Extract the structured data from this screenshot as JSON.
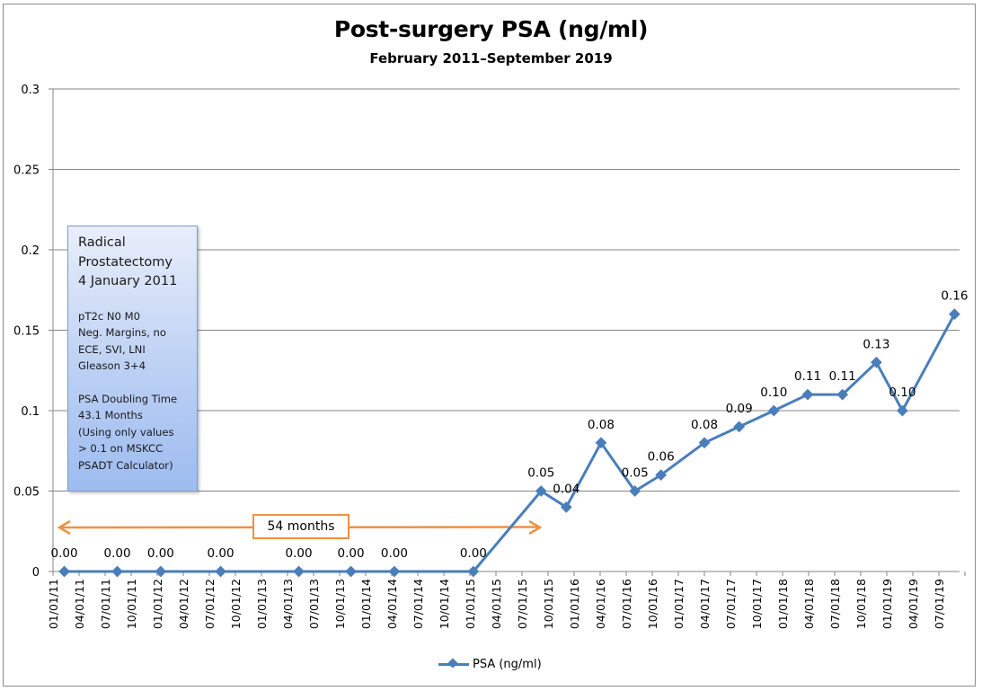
{
  "chart_data": {
    "type": "line",
    "title": "Post-surgery PSA (ng/ml)",
    "subtitle": "February 2011–September 2019",
    "xlabel": "",
    "ylabel": "",
    "ylim": [
      0,
      0.3
    ],
    "y_ticks": [
      0,
      0.05,
      0.1,
      0.15,
      0.2,
      0.25,
      0.3
    ],
    "y_tick_labels": [
      "0",
      "0.05",
      "0.1",
      "0.15",
      "0.2",
      "0.25",
      "0.3"
    ],
    "x_axis_type": "date",
    "x_range_months_since_2011_01_01": [
      0,
      105
    ],
    "x_tick_labels": [
      "01/01/11",
      "04/01/11",
      "07/01/11",
      "10/01/11",
      "01/01/12",
      "04/01/12",
      "07/01/12",
      "10/01/12",
      "01/01/13",
      "04/01/13",
      "07/01/13",
      "10/01/13",
      "01/01/14",
      "04/01/14",
      "07/01/14",
      "10/01/14",
      "01/01/15",
      "04/01/15",
      "07/01/15",
      "10/01/15",
      "01/01/16",
      "04/01/16",
      "07/01/16",
      "10/01/16",
      "01/01/17",
      "04/01/17",
      "07/01/17",
      "10/01/17",
      "01/01/18",
      "04/01/18",
      "07/01/18",
      "10/01/18",
      "01/01/19",
      "04/01/19",
      "07/01/19"
    ],
    "grid": "horizontal",
    "legend_position": "bottom",
    "series": [
      {
        "name": "PSA (ng/ml)",
        "color": "#4a7ebb",
        "marker": "diamond",
        "x_months": [
          1.3,
          7.4,
          12.4,
          19.3,
          28.3,
          34.3,
          39.3,
          48.4,
          56.2,
          59.1,
          63.1,
          67.0,
          70.0,
          75.0,
          79.0,
          83.0,
          86.9,
          90.9,
          94.8,
          97.8,
          103.8
        ],
        "x_dates_approx": [
          "Feb 2011",
          "Aug 2011",
          "Jan 2012",
          "Aug 2012",
          "May 2013",
          "Nov 2013",
          "Apr 2014",
          "Jan 2015",
          "Sep 2015",
          "Dec 2015",
          "Apr 2016",
          "Aug 2016",
          "Nov 2016",
          "Apr 2017",
          "Aug 2017",
          "Dec 2017",
          "Mar 2018",
          "Jul 2018",
          "Nov 2018",
          "Feb 2019",
          "Sep 2019"
        ],
        "values": [
          0,
          0,
          0,
          0,
          0,
          0,
          0,
          0,
          0.05,
          0.04,
          0.08,
          0.05,
          0.06,
          0.08,
          0.09,
          0.1,
          0.11,
          0.11,
          0.13,
          0.1,
          0.16
        ],
        "labels": [
          "0.00",
          "0.00",
          "0.00",
          "0.00",
          "0.00",
          "0.00",
          "0.00",
          "0.00",
          "0.05",
          "0.04",
          "0.08",
          "0.05",
          "0.06",
          "0.08",
          "0.09",
          "0.10",
          "0.11",
          "0.11",
          "0.13",
          "0.10",
          "0.16"
        ]
      }
    ],
    "annotations": {
      "surgery_box": {
        "heading_lines": [
          "Radical",
          "Prostatectomy",
          "4 January 2011"
        ],
        "pathology_lines": [
          "pT2c N0 M0",
          "Neg. Margins, no",
          "ECE, SVI, LNI",
          "Gleason 3+4"
        ],
        "psadt_lines": [
          "PSA Doubling Time",
          "43.1 Months",
          "(Using only values",
          "> 0.1 on MSKCC",
          "PSADT Calculator)"
        ]
      },
      "interval_arrow": {
        "label": "54 months",
        "color": "#f0913f",
        "from_month": 0,
        "to_month": 57
      }
    }
  }
}
